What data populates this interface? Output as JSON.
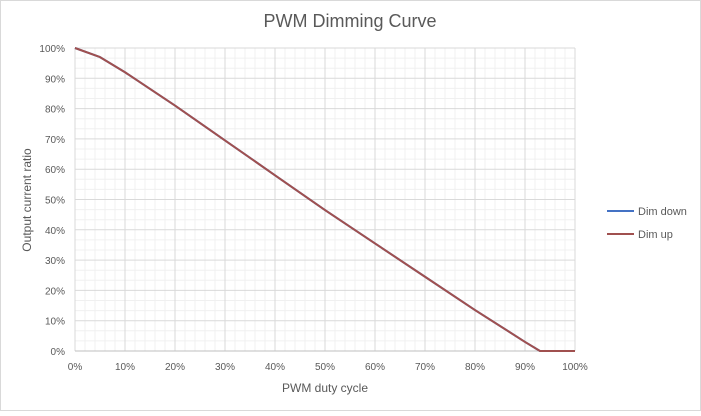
{
  "chart_data": {
    "type": "line",
    "title": "PWM Dimming Curve",
    "xlabel": "PWM duty cycle",
    "ylabel": "Output current ratio",
    "x_ticks": [
      "0%",
      "10%",
      "20%",
      "30%",
      "40%",
      "50%",
      "60%",
      "70%",
      "80%",
      "90%",
      "100%"
    ],
    "y_ticks": [
      "0%",
      "10%",
      "20%",
      "30%",
      "40%",
      "50%",
      "60%",
      "70%",
      "80%",
      "90%",
      "100%"
    ],
    "xlim": [
      0,
      100
    ],
    "ylim": [
      0,
      100
    ],
    "grid": true,
    "minor_grid": true,
    "legend_position": "right",
    "series": [
      {
        "name": "Dim down",
        "color": "#4472C4",
        "x": [
          0,
          5,
          10,
          20,
          30,
          40,
          50,
          60,
          70,
          80,
          90,
          93,
          100
        ],
        "y": [
          100,
          97,
          92,
          81,
          69.5,
          58,
          46.5,
          35.5,
          24.5,
          13.5,
          3,
          0,
          0
        ]
      },
      {
        "name": "Dim up",
        "color": "#A0504F",
        "x": [
          0,
          5,
          10,
          20,
          30,
          40,
          50,
          60,
          70,
          80,
          90,
          93,
          100
        ],
        "y": [
          100,
          97,
          92,
          81,
          69.5,
          58,
          46.5,
          35.5,
          24.5,
          13.5,
          3,
          0,
          0
        ]
      }
    ]
  }
}
